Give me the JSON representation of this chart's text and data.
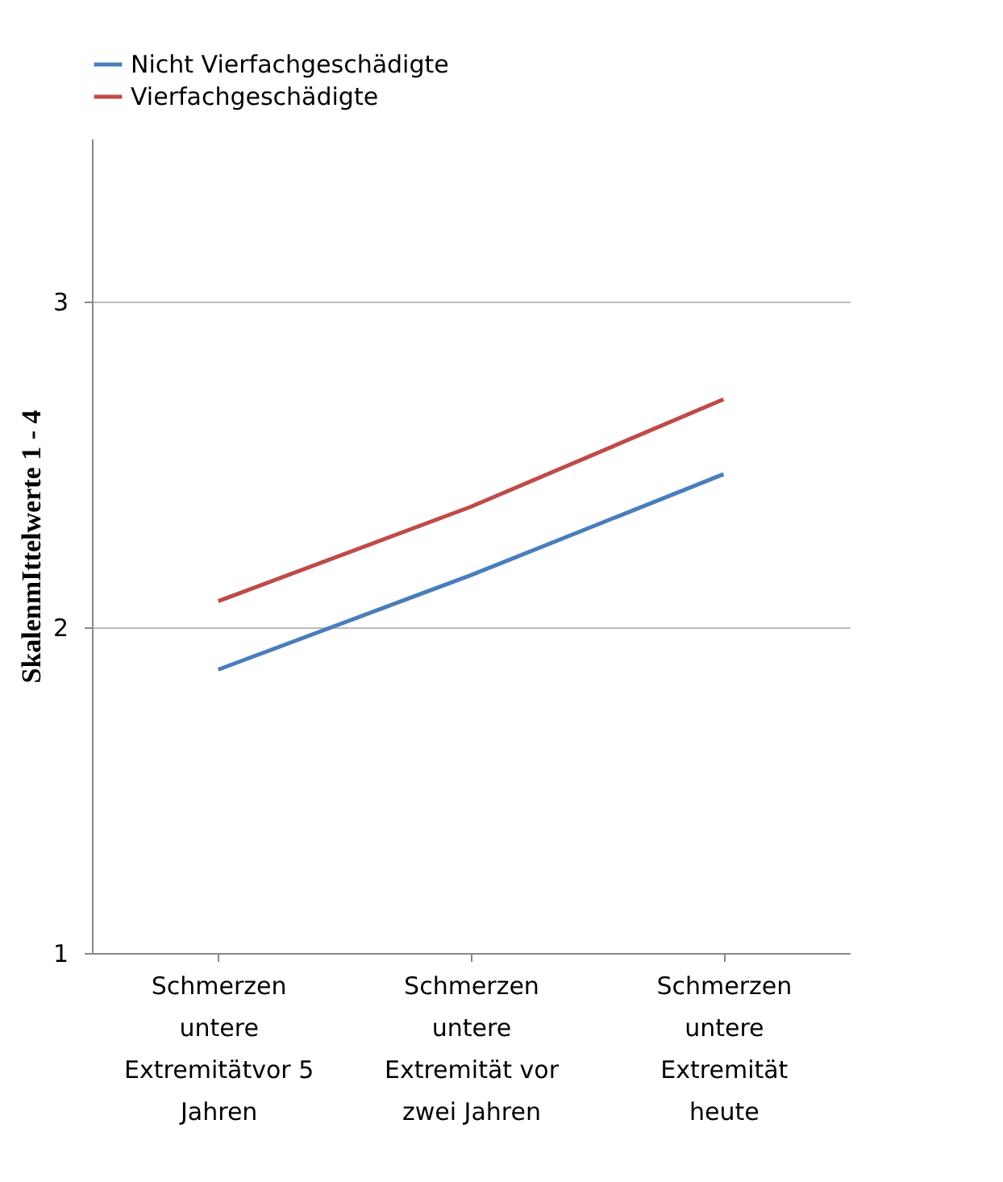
{
  "chart_data": {
    "type": "line",
    "ylabel": "SkalenmIttelwerte 1 - 4",
    "categories": [
      "Schmerzen untere Extremitätvor 5 Jahren",
      "Schmerzen untere Extremität vor zwei Jahren",
      "Schmerzen untere Extremität heute"
    ],
    "series": [
      {
        "name": "Nicht Vierfachgeschädigte",
        "color": "#4a7ebb",
        "values": [
          1.87,
          2.16,
          2.47
        ]
      },
      {
        "name": "Vierfachgeschädigte",
        "color": "#be4b48",
        "values": [
          2.08,
          2.37,
          2.7
        ]
      }
    ],
    "ylim": [
      1,
      3.5
    ],
    "yticks": [
      1,
      2,
      3
    ],
    "grid": "y",
    "legend": "top",
    "marker": "none",
    "line_style": "solid"
  }
}
